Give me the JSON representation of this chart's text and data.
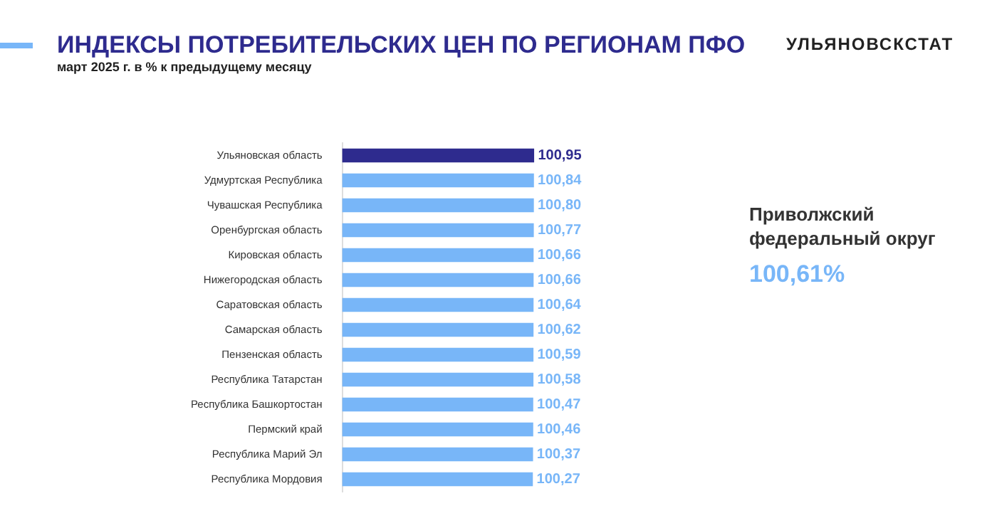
{
  "chart_data": {
    "type": "bar",
    "orientation": "horizontal",
    "title": "ИНДЕКСЫ ПОТРЕБИТЕЛЬСКИХ ЦЕН ПО РЕГИОНАМ ПФО",
    "subtitle": "март 2025 г. в % к предыдущему месяцу",
    "categories": [
      "Ульяновская область",
      "Удмуртская Республика",
      "Чувашская Республика",
      "Оренбургская область",
      "Кировская область",
      "Нижегородская область",
      "Саратовская область",
      "Самарская область",
      "Пензенская область",
      "Республика Татарстан",
      "Республика Башкортостан",
      "Пермский край",
      "Республика Марий Эл",
      "Республика Мордовия"
    ],
    "values": [
      100.95,
      100.84,
      100.8,
      100.77,
      100.66,
      100.66,
      100.64,
      100.62,
      100.59,
      100.58,
      100.47,
      100.46,
      100.37,
      100.27
    ],
    "value_labels": [
      "100,95",
      "100,84",
      "100,80",
      "100,77",
      "100,66",
      "100,66",
      "100,64",
      "100,62",
      "100,59",
      "100,58",
      "100,47",
      "100,46",
      "100,37",
      "100,27"
    ],
    "colors": [
      "#2e2b8e",
      "#78b6f8",
      "#78b6f8",
      "#78b6f8",
      "#78b6f8",
      "#78b6f8",
      "#78b6f8",
      "#78b6f8",
      "#78b6f8",
      "#78b6f8",
      "#78b6f8",
      "#78b6f8",
      "#78b6f8",
      "#78b6f8"
    ],
    "legend": false,
    "annotations": [
      "УЛЬЯНОВСКСТАТ",
      "Приволжский федеральный округ",
      "100,61%"
    ]
  }
}
